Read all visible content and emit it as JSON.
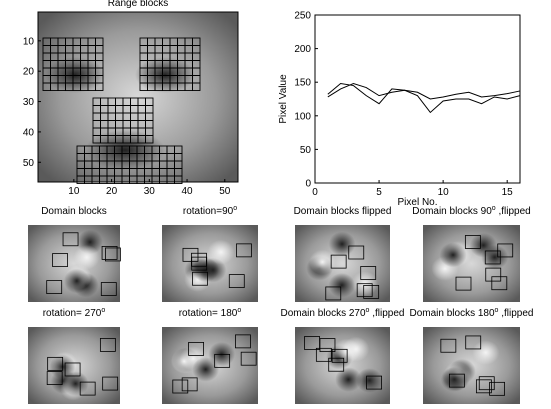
{
  "chart_data": [
    {
      "type": "image",
      "title": [
        "Range blocks"
      ],
      "xlim": [
        0.5,
        53.5
      ],
      "ylim": [
        0.5,
        56.5
      ],
      "xticks": [
        10,
        20,
        30,
        40,
        50
      ],
      "yticks": [
        10,
        20,
        30,
        40,
        50
      ]
    },
    {
      "type": "line",
      "xlabel": "Pixel No.",
      "ylabel": "Pixel Value",
      "xlim": [
        0,
        16
      ],
      "ylim": [
        0,
        250
      ],
      "xticks": [
        0,
        5,
        10,
        15
      ],
      "yticks": [
        0,
        50,
        100,
        150,
        200,
        250
      ],
      "x": [
        1,
        2,
        3,
        4,
        5,
        6,
        7,
        8,
        9,
        10,
        11,
        12,
        13,
        14,
        15,
        16
      ],
      "series": [
        {
          "color": "#000000",
          "values": [
            128,
            140,
            148,
            142,
            130,
            135,
            138,
            135,
            125,
            128,
            132,
            135,
            128,
            130,
            133,
            137
          ]
        },
        {
          "color": "#000000",
          "values": [
            132,
            148,
            145,
            130,
            118,
            140,
            138,
            130,
            105,
            122,
            125,
            125,
            118,
            128,
            125,
            130
          ]
        }
      ]
    },
    {
      "type": "image",
      "title": [
        "Domain blocks"
      ]
    },
    {
      "type": "image",
      "title": [
        "rotation=90",
        "o"
      ]
    },
    {
      "type": "image",
      "title": [
        "Domain blocks flipped"
      ]
    },
    {
      "type": "image",
      "title": [
        "Domain blocks 90",
        "o",
        " ,flipped"
      ]
    },
    {
      "type": "image",
      "title": [
        "rotation= 270",
        "o"
      ]
    },
    {
      "type": "image",
      "title": [
        "rotation= 180",
        "o"
      ]
    },
    {
      "type": "image",
      "title": [
        "Domain blocks 270",
        "o",
        " ,flipped"
      ]
    },
    {
      "type": "image",
      "title": [
        "Domain blocks 180",
        "o",
        " ,flipped"
      ]
    }
  ]
}
